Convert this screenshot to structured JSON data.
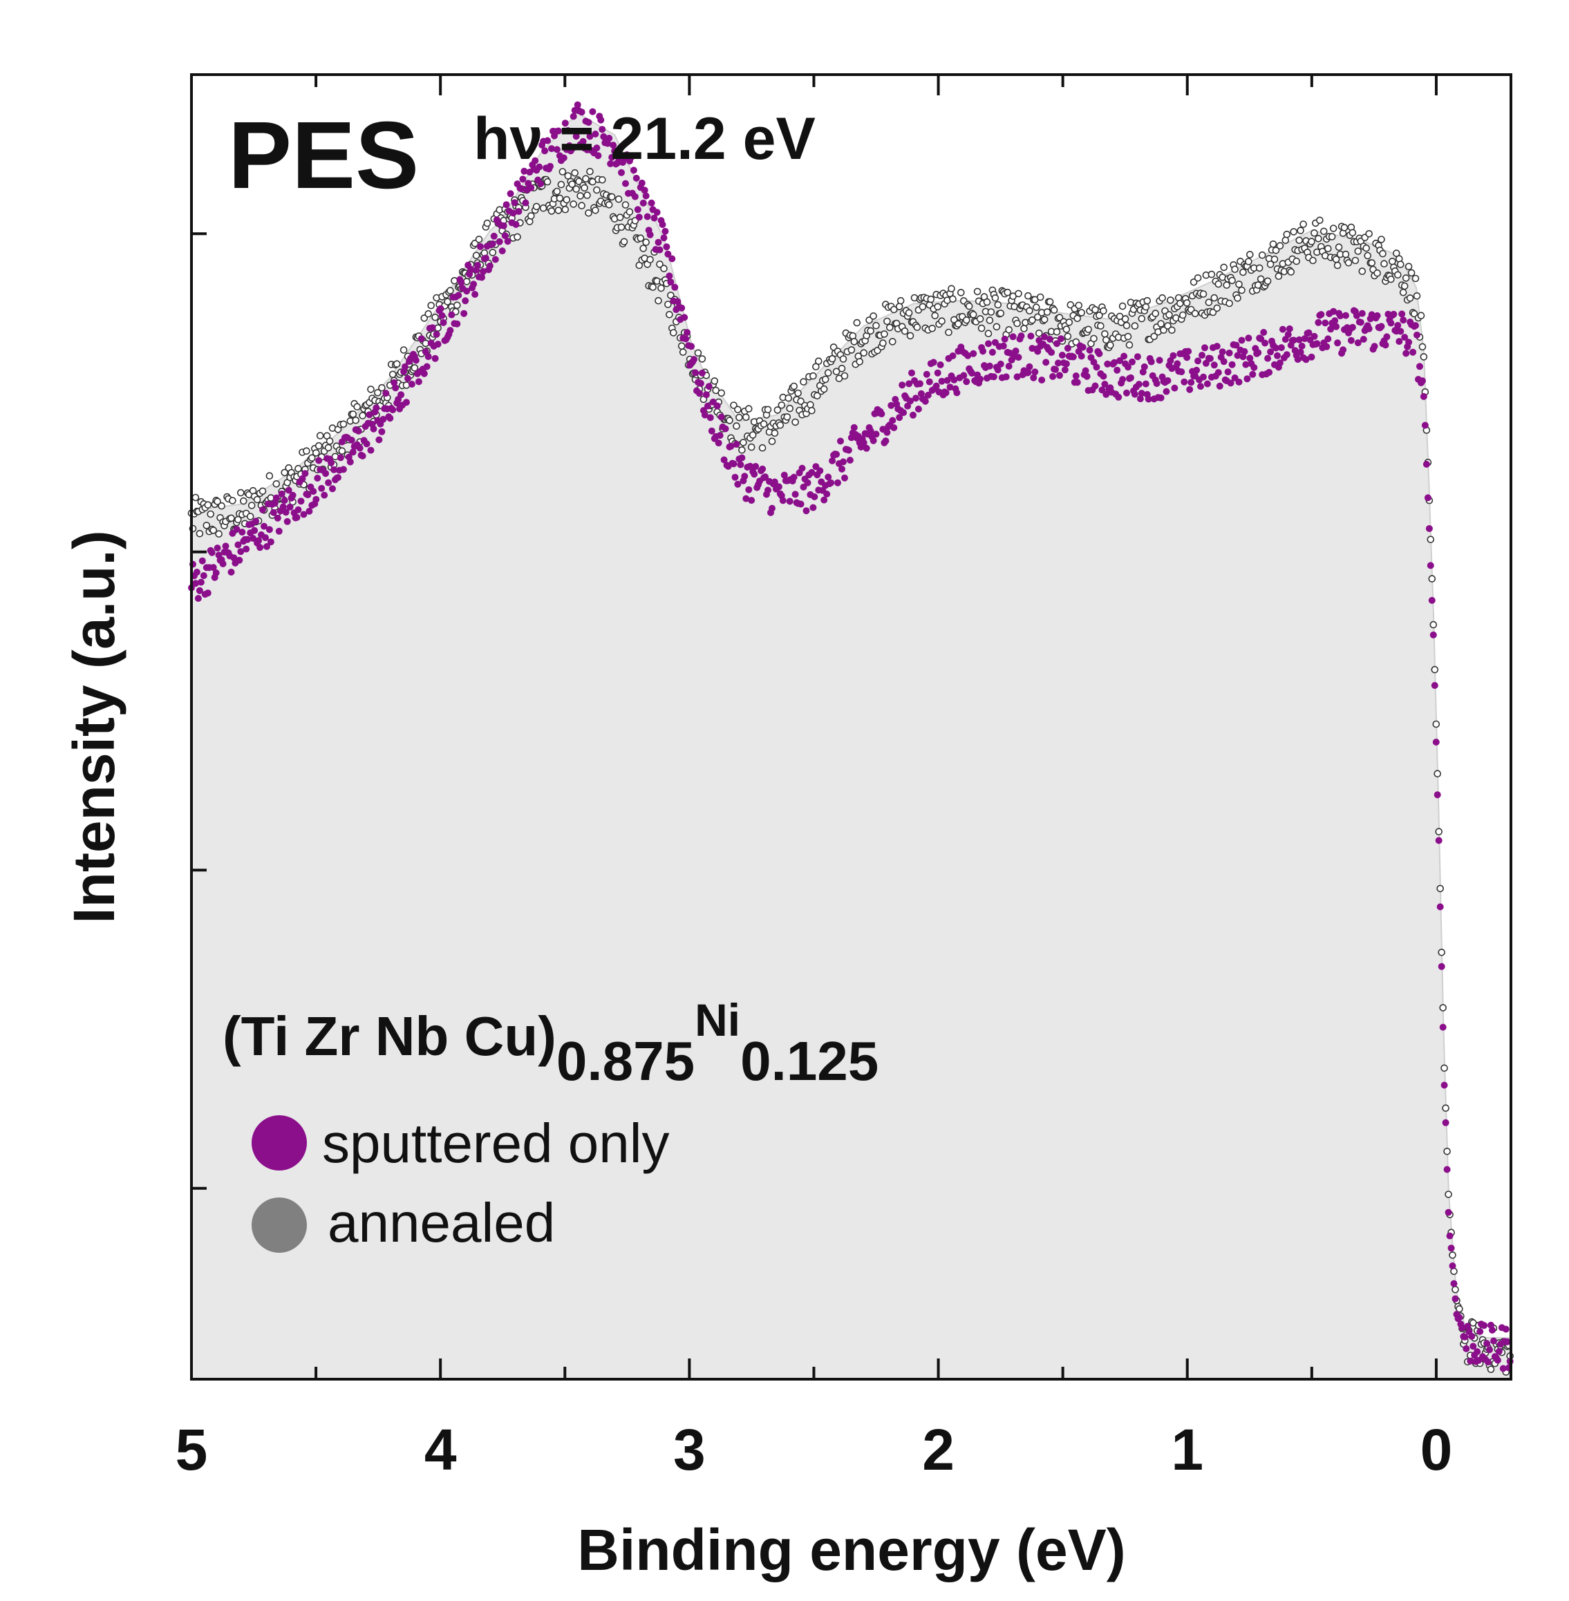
{
  "chart_data": {
    "type": "scatter",
    "title": "PES",
    "photon_energy_label": "hν = 21.2 eV",
    "xlabel": "Binding energy (eV)",
    "ylabel": "Intensity (a.u.)",
    "xlim": [
      5.0,
      -0.3
    ],
    "ylim": [
      0,
      4.1
    ],
    "x_ticks": [
      "5",
      "4",
      "3",
      "2",
      "1",
      "0"
    ],
    "x_tick_values": [
      5,
      4,
      3,
      2,
      1,
      0
    ],
    "y_tick_values": [
      0.6,
      1.6,
      2.6,
      3.6
    ],
    "compound": {
      "prefix": "(Ti Zr Nb Cu)",
      "sub1": "0.875",
      "element": "Ni",
      "sub2": "0.125"
    },
    "series": [
      {
        "name": "sputtered only",
        "color": "#8b0e8b",
        "points": [
          [
            5.0,
            2.5
          ],
          [
            4.8,
            2.62
          ],
          [
            4.6,
            2.75
          ],
          [
            4.4,
            2.88
          ],
          [
            4.2,
            3.05
          ],
          [
            4.0,
            3.3
          ],
          [
            3.8,
            3.55
          ],
          [
            3.6,
            3.82
          ],
          [
            3.45,
            3.95
          ],
          [
            3.3,
            3.88
          ],
          [
            3.1,
            3.55
          ],
          [
            2.95,
            3.1
          ],
          [
            2.8,
            2.85
          ],
          [
            2.65,
            2.78
          ],
          [
            2.5,
            2.8
          ],
          [
            2.3,
            2.95
          ],
          [
            2.1,
            3.1
          ],
          [
            1.9,
            3.18
          ],
          [
            1.7,
            3.22
          ],
          [
            1.5,
            3.2
          ],
          [
            1.3,
            3.15
          ],
          [
            1.1,
            3.15
          ],
          [
            0.9,
            3.18
          ],
          [
            0.7,
            3.22
          ],
          [
            0.5,
            3.28
          ],
          [
            0.3,
            3.3
          ],
          [
            0.15,
            3.3
          ],
          [
            0.08,
            3.25
          ],
          [
            0.05,
            3.1
          ],
          [
            0.03,
            2.7
          ],
          [
            0.01,
            2.3
          ],
          [
            -0.01,
            1.7
          ],
          [
            -0.03,
            1.0
          ],
          [
            -0.05,
            0.5
          ],
          [
            -0.08,
            0.22
          ],
          [
            -0.12,
            0.12
          ],
          [
            -0.2,
            0.1
          ],
          [
            -0.3,
            0.1
          ]
        ]
      },
      {
        "name": "annealed",
        "color": "#808080",
        "points": [
          [
            5.0,
            2.7
          ],
          [
            4.8,
            2.72
          ],
          [
            4.6,
            2.82
          ],
          [
            4.4,
            2.95
          ],
          [
            4.2,
            3.12
          ],
          [
            4.0,
            3.35
          ],
          [
            3.8,
            3.58
          ],
          [
            3.6,
            3.72
          ],
          [
            3.45,
            3.75
          ],
          [
            3.3,
            3.68
          ],
          [
            3.1,
            3.42
          ],
          [
            2.95,
            3.15
          ],
          [
            2.8,
            2.98
          ],
          [
            2.65,
            3.0
          ],
          [
            2.5,
            3.12
          ],
          [
            2.3,
            3.28
          ],
          [
            2.1,
            3.35
          ],
          [
            1.9,
            3.36
          ],
          [
            1.7,
            3.35
          ],
          [
            1.5,
            3.32
          ],
          [
            1.3,
            3.3
          ],
          [
            1.1,
            3.35
          ],
          [
            0.9,
            3.42
          ],
          [
            0.7,
            3.5
          ],
          [
            0.5,
            3.58
          ],
          [
            0.3,
            3.55
          ],
          [
            0.15,
            3.5
          ],
          [
            0.08,
            3.4
          ],
          [
            0.05,
            3.2
          ],
          [
            0.03,
            2.8
          ],
          [
            0.01,
            2.35
          ],
          [
            -0.01,
            1.75
          ],
          [
            -0.03,
            1.05
          ],
          [
            -0.05,
            0.55
          ],
          [
            -0.08,
            0.25
          ],
          [
            -0.12,
            0.12
          ],
          [
            -0.2,
            0.1
          ],
          [
            -0.3,
            0.08
          ]
        ]
      }
    ],
    "legend_position": "lower-left"
  }
}
